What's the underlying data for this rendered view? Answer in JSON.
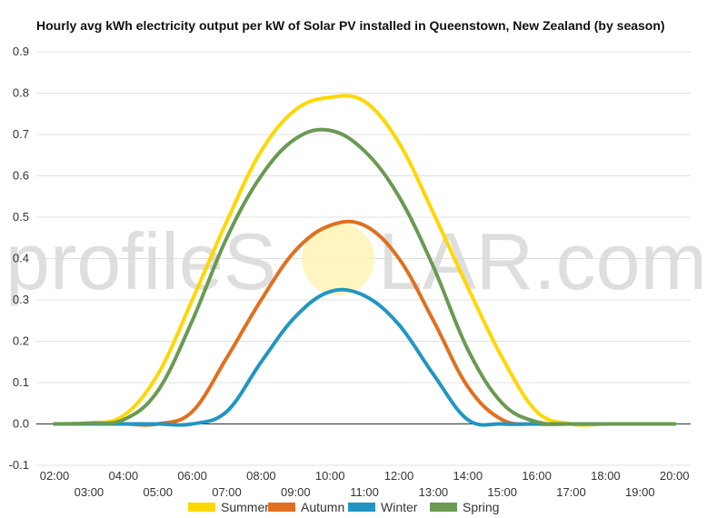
{
  "watermark": {
    "text_left": "profileS",
    "text_right": "LAR.com",
    "sun_color": "#fff3b0"
  },
  "chart_data": {
    "type": "line",
    "title": "Hourly avg kWh electricity output per kW of Solar PV installed in Queenstown, New Zealand (by season)",
    "xlabel": "",
    "ylabel": "",
    "x": [
      "02:00",
      "03:00",
      "04:00",
      "05:00",
      "06:00",
      "07:00",
      "08:00",
      "09:00",
      "10:00",
      "11:00",
      "12:00",
      "13:00",
      "14:00",
      "15:00",
      "16:00",
      "17:00",
      "18:00",
      "19:00",
      "20:00"
    ],
    "x_tick_labels": [
      "02:00",
      "03:00",
      "04:00",
      "05:00",
      "06:00",
      "07:00",
      "08:00",
      "09:00",
      "10:00",
      "11:00",
      "12:00",
      "13:00",
      "14:00",
      "15:00",
      "16:00",
      "17:00",
      "18:00",
      "19:00",
      "20:00"
    ],
    "ylim": [
      -0.1,
      0.9
    ],
    "y_ticks": [
      "-0.1",
      "0.0",
      "0.1",
      "0.2",
      "0.3",
      "0.4",
      "0.5",
      "0.6",
      "0.7",
      "0.8",
      "0.9"
    ],
    "grid": true,
    "legend_position": "bottom",
    "series": [
      {
        "name": "Summer",
        "color": "#ffd700",
        "values": [
          0,
          0.002,
          0.02,
          0.12,
          0.3,
          0.49,
          0.66,
          0.76,
          0.79,
          0.78,
          0.68,
          0.51,
          0.33,
          0.16,
          0.03,
          0,
          0,
          0,
          0
        ]
      },
      {
        "name": "Autumn",
        "color": "#e07020",
        "values": [
          0,
          0,
          0,
          0,
          0.03,
          0.16,
          0.3,
          0.42,
          0.48,
          0.48,
          0.4,
          0.25,
          0.09,
          0.01,
          0,
          0,
          0,
          0,
          0
        ]
      },
      {
        "name": "Winter",
        "color": "#2196c4",
        "values": [
          0,
          0,
          0,
          0,
          0,
          0.03,
          0.15,
          0.26,
          0.32,
          0.31,
          0.24,
          0.12,
          0.01,
          0,
          0,
          0,
          0,
          0,
          0
        ]
      },
      {
        "name": "Spring",
        "color": "#6a9a52",
        "values": [
          0,
          0.002,
          0.01,
          0.08,
          0.25,
          0.45,
          0.6,
          0.69,
          0.71,
          0.66,
          0.55,
          0.38,
          0.18,
          0.05,
          0.005,
          0,
          0,
          0,
          0
        ]
      }
    ]
  }
}
